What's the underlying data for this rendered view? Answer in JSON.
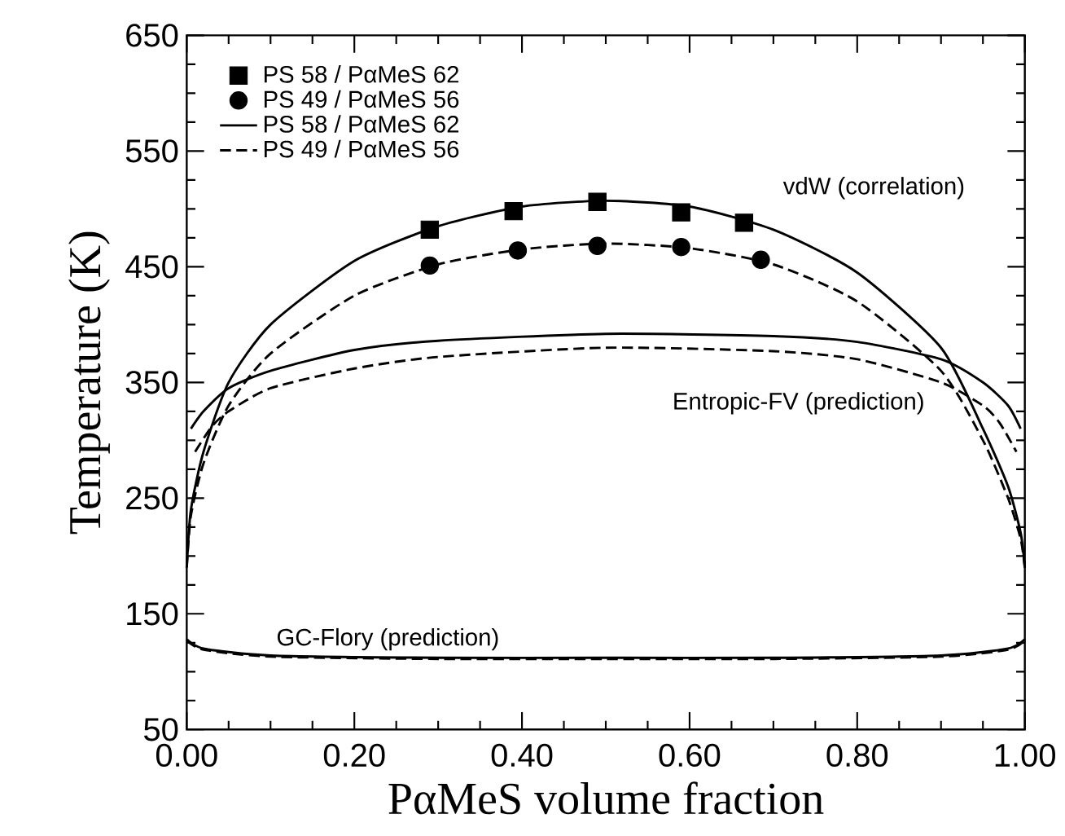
{
  "chart_data": {
    "type": "line",
    "xlabel": "PαMeS volume fraction",
    "ylabel": "Temperature (K)",
    "xlim": [
      0,
      1
    ],
    "ylim": [
      50,
      650
    ],
    "xticks": [
      {
        "value": 0,
        "label": "0.00"
      },
      {
        "value": 0.2,
        "label": "0.20"
      },
      {
        "value": 0.4,
        "label": "0.40"
      },
      {
        "value": 0.6,
        "label": "0.60"
      },
      {
        "value": 0.8,
        "label": "0.80"
      },
      {
        "value": 1,
        "label": "1.00"
      }
    ],
    "yticks": [
      50,
      150,
      250,
      350,
      450,
      550,
      650
    ],
    "legend": "top left",
    "grid": false,
    "series": [
      {
        "name": "PS 58 / PαMeS 62",
        "type": "scatter",
        "marker": "square",
        "color": "#000000",
        "x": [
          0.29,
          0.39,
          0.49,
          0.59,
          0.665
        ],
        "values": [
          482,
          498,
          506,
          497,
          488
        ]
      },
      {
        "name": "PS 49 / PαMeS 56",
        "type": "scatter",
        "marker": "circle",
        "color": "#000000",
        "x": [
          0.29,
          0.395,
          0.49,
          0.59,
          0.685
        ],
        "values": [
          451,
          464,
          468,
          467,
          456
        ]
      },
      {
        "name": "PS 58 / PαMeS 62",
        "line_style": "solid",
        "color": "#000000",
        "x": [
          0,
          0.005,
          0.02,
          0.05,
          0.1,
          0.2,
          0.3,
          0.4,
          0.5,
          0.6,
          0.7,
          0.8,
          0.9,
          0.95,
          0.98,
          0.995,
          1
        ],
        "values": [
          190,
          240,
          290,
          350,
          400,
          455,
          485,
          502,
          507,
          502,
          482,
          445,
          380,
          310,
          260,
          220,
          190
        ]
      },
      {
        "name": "PS 49 / PαMeS 56",
        "line_style": "dashed",
        "color": "#000000",
        "x": [
          0,
          0.005,
          0.02,
          0.05,
          0.1,
          0.2,
          0.3,
          0.4,
          0.5,
          0.6,
          0.7,
          0.8,
          0.9,
          0.95,
          0.98,
          0.995,
          1
        ],
        "values": [
          190,
          235,
          280,
          330,
          375,
          425,
          452,
          465,
          470,
          466,
          452,
          420,
          360,
          300,
          250,
          215,
          190
        ]
      },
      {
        "line_style": "solid",
        "color": "#000000",
        "x": [
          0.005,
          0.02,
          0.05,
          0.1,
          0.2,
          0.3,
          0.5,
          0.7,
          0.8,
          0.9,
          0.95,
          0.98,
          0.995
        ],
        "values": [
          310,
          325,
          345,
          360,
          378,
          386,
          392,
          390,
          385,
          370,
          350,
          330,
          310
        ]
      },
      {
        "line_style": "dashed",
        "color": "#000000",
        "x": [
          0.01,
          0.03,
          0.05,
          0.1,
          0.2,
          0.3,
          0.5,
          0.7,
          0.8,
          0.9,
          0.95,
          0.97,
          0.99
        ],
        "values": [
          290,
          312,
          325,
          345,
          362,
          372,
          380,
          377,
          370,
          350,
          330,
          315,
          290
        ]
      },
      {
        "line_style": "solid",
        "color": "#000000",
        "x": [
          0,
          0.02,
          0.1,
          0.3,
          0.5,
          0.7,
          0.9,
          0.98,
          1
        ],
        "values": [
          128,
          120,
          114,
          112,
          112,
          112,
          114,
          120,
          128
        ]
      },
      {
        "line_style": "dashed",
        "color": "#000000",
        "x": [
          0,
          0.02,
          0.1,
          0.3,
          0.5,
          0.7,
          0.9,
          0.98,
          1
        ],
        "values": [
          127,
          119,
          113,
          111,
          111,
          111,
          113,
          119,
          127
        ]
      }
    ],
    "annotations": [
      "vdW (correlation)",
      "Entropic-FV (prediction)",
      "GC-Flory (prediction)"
    ]
  }
}
